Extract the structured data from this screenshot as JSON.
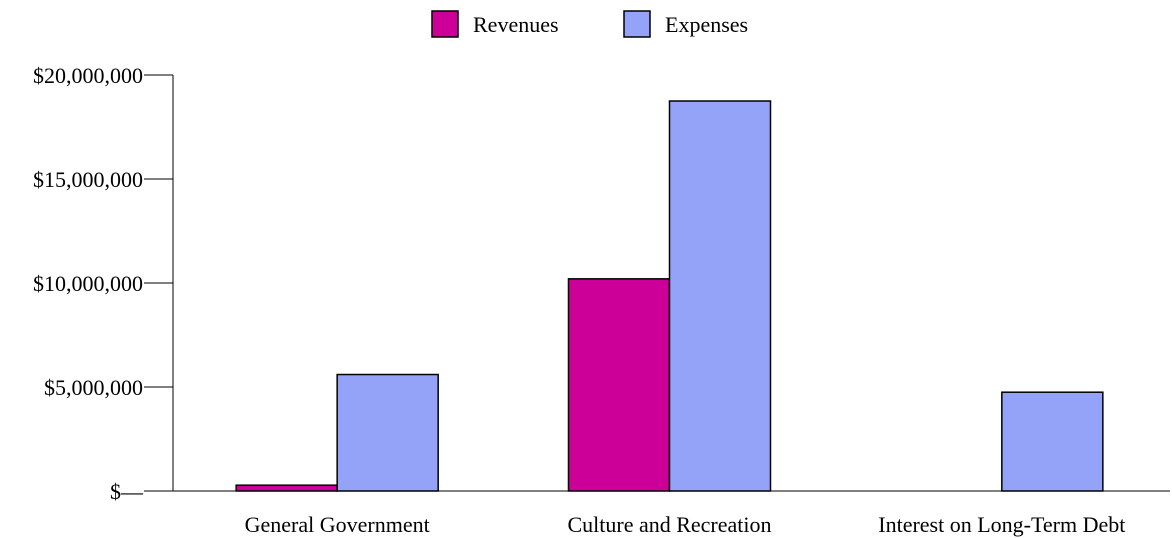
{
  "chart_data": {
    "type": "bar",
    "categories": [
      "General Government",
      "Culture and Recreation",
      "Interest on Long-Term Debt"
    ],
    "series": [
      {
        "name": "Revenues",
        "color": "#CC0099",
        "values": [
          280000,
          10200000,
          0
        ]
      },
      {
        "name": "Expenses",
        "color": "#94A3F7",
        "values": [
          5600000,
          18750000,
          4750000
        ]
      }
    ],
    "ylim": [
      0,
      20000000
    ],
    "y_ticks": [
      {
        "value": 0,
        "label": "$—"
      },
      {
        "value": 5000000,
        "label": "$5,000,000"
      },
      {
        "value": 10000000,
        "label": "$10,000,000"
      },
      {
        "value": 15000000,
        "label": "$15,000,000"
      },
      {
        "value": 20000000,
        "label": "$20,000,000"
      }
    ],
    "legend_position": "top-center",
    "grid": false
  }
}
